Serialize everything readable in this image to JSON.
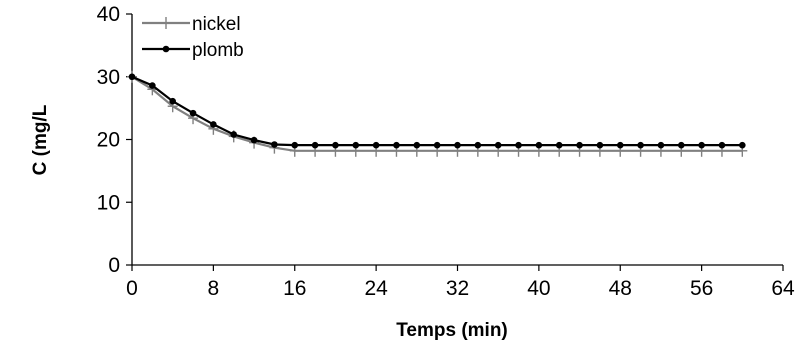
{
  "chart_data": {
    "type": "line",
    "xlabel": "Temps (min)",
    "ylabel": "C (mg/L",
    "xlim": [
      0,
      64
    ],
    "ylim": [
      0,
      40
    ],
    "xticks": [
      0,
      8,
      16,
      24,
      32,
      40,
      48,
      56,
      64
    ],
    "yticks": [
      0,
      10,
      20,
      30,
      40
    ],
    "grid": false,
    "legend_position": "top-left",
    "series": [
      {
        "name": "nickel",
        "color": "#808080",
        "marker": "plus",
        "x": [
          0,
          2,
          4,
          6,
          8,
          10,
          12,
          14,
          16,
          18,
          20,
          22,
          24,
          26,
          28,
          30,
          32,
          34,
          36,
          38,
          40,
          42,
          44,
          46,
          48,
          50,
          52,
          54,
          56,
          58,
          60
        ],
        "y": [
          30,
          28,
          25.3,
          23.4,
          21.7,
          20.5,
          19.5,
          18.7,
          18.2,
          18.2,
          18.2,
          18.2,
          18.2,
          18.2,
          18.2,
          18.2,
          18.2,
          18.2,
          18.2,
          18.2,
          18.2,
          18.2,
          18.2,
          18.2,
          18.2,
          18.2,
          18.2,
          18.2,
          18.2,
          18.2,
          18.2
        ]
      },
      {
        "name": "plomb",
        "color": "#000000",
        "marker": "circle",
        "x": [
          0,
          2,
          4,
          6,
          8,
          10,
          12,
          14,
          16,
          18,
          20,
          22,
          24,
          26,
          28,
          30,
          32,
          34,
          36,
          38,
          40,
          42,
          44,
          46,
          48,
          50,
          52,
          54,
          56,
          58,
          60
        ],
        "y": [
          30,
          28.6,
          26.1,
          24.2,
          22.4,
          20.8,
          19.9,
          19.2,
          19.1,
          19.1,
          19.1,
          19.1,
          19.1,
          19.1,
          19.1,
          19.1,
          19.1,
          19.1,
          19.1,
          19.1,
          19.1,
          19.1,
          19.1,
          19.1,
          19.1,
          19.1,
          19.1,
          19.1,
          19.1,
          19.1,
          19.1
        ]
      }
    ]
  }
}
